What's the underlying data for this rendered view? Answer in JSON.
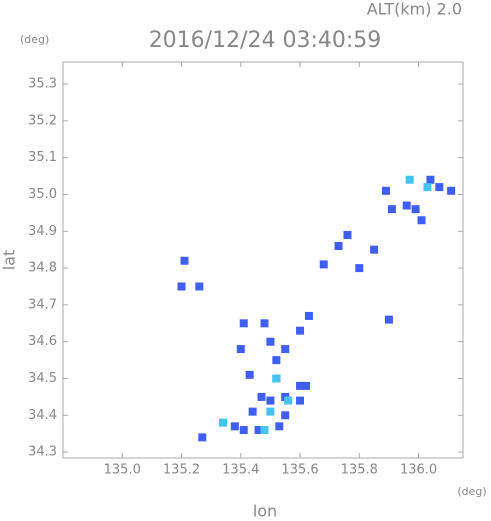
{
  "chart_data": {
    "type": "scatter",
    "title": "2016/12/24 03:40:59",
    "subtitle": "ALT(km) 2.0",
    "x_label": "lon",
    "y_label": "lat",
    "x_unit": "(deg)",
    "y_unit": "(deg)",
    "xlim": [
      134.8,
      136.15
    ],
    "ylim": [
      34.284,
      35.36
    ],
    "xticks": [
      {
        "value": 135,
        "label": "135.0"
      },
      135.2,
      135.4,
      135.6,
      135.8,
      {
        "value": 136,
        "label": "136.0"
      }
    ],
    "yticks": [
      {
        "value": 34.3,
        "label": "34.3"
      },
      34.4,
      34.5,
      34.6,
      34.7,
      34.8,
      34.9,
      {
        "value": 35,
        "label": "35.0"
      },
      35.1,
      35.2,
      35.3
    ],
    "series": [
      {
        "color": "#3f5ff0",
        "x": [
          135.21,
          135.2,
          135.26,
          135.27,
          135.38,
          135.41,
          135.46,
          135.53,
          135.5,
          135.55,
          135.6,
          135.62,
          135.52,
          135.52,
          135.5,
          135.55,
          135.4,
          135.41,
          135.48,
          135.6,
          135.63,
          135.43,
          135.47,
          135.44,
          135.68,
          135.73,
          135.76,
          135.8,
          135.85,
          135.89,
          135.91,
          135.96,
          135.99,
          136.01,
          135.9,
          136.04,
          136.07,
          136.11,
          135.6,
          135.55
        ],
        "values": [
          34.82,
          34.75,
          34.75,
          34.34,
          34.37,
          34.36,
          34.36,
          34.37,
          34.44,
          34.45,
          34.44,
          34.48,
          34.5,
          34.55,
          34.6,
          34.58,
          34.58,
          34.65,
          34.65,
          34.63,
          34.67,
          34.51,
          34.45,
          34.41,
          34.81,
          34.86,
          34.89,
          34.8,
          34.85,
          35.01,
          34.96,
          34.97,
          34.96,
          34.93,
          34.66,
          35.04,
          35.02,
          35.01,
          34.48,
          34.4
        ]
      },
      {
        "color": "#46c4f0",
        "x": [
          135.52,
          135.5,
          136.03,
          135.97,
          135.34,
          135.56,
          135.48
        ],
        "values": [
          34.5,
          34.41,
          35.02,
          35.04,
          34.38,
          34.44,
          34.36
        ]
      }
    ]
  }
}
